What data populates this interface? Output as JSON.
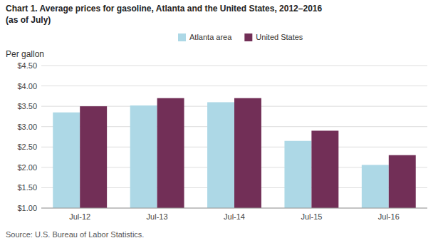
{
  "chart_data": {
    "type": "bar",
    "title": "Chart 1.  Average prices for gasoline, Atlanta and the United States, 2012–2016",
    "subtitle": "(as of July)",
    "y_label": "Per gallon",
    "source": "Source: U.S. Bureau of Labor Statistics.",
    "categories": [
      "Jul-12",
      "Jul-13",
      "Jul-14",
      "Jul-15",
      "Jul-16"
    ],
    "series": [
      {
        "name": "Atlanta area",
        "color": "#ADD8E6",
        "values": [
          3.35,
          3.52,
          3.6,
          2.65,
          2.06
        ]
      },
      {
        "name": "United States",
        "color": "#722F57",
        "values": [
          3.5,
          3.7,
          3.7,
          2.9,
          2.3
        ]
      }
    ],
    "ylim": [
      1.0,
      4.5
    ],
    "yticks": [
      {
        "value": 1.0,
        "label": "$1.00"
      },
      {
        "value": 1.5,
        "label": "$1.50"
      },
      {
        "value": 2.0,
        "label": "$2.00"
      },
      {
        "value": 2.5,
        "label": "$2.50"
      },
      {
        "value": 3.0,
        "label": "$3.00"
      },
      {
        "value": 3.5,
        "label": "$3.50"
      },
      {
        "value": 4.0,
        "label": "$4.00"
      },
      {
        "value": 4.5,
        "label": "$4.50"
      }
    ],
    "grid": true,
    "legend": "top"
  }
}
